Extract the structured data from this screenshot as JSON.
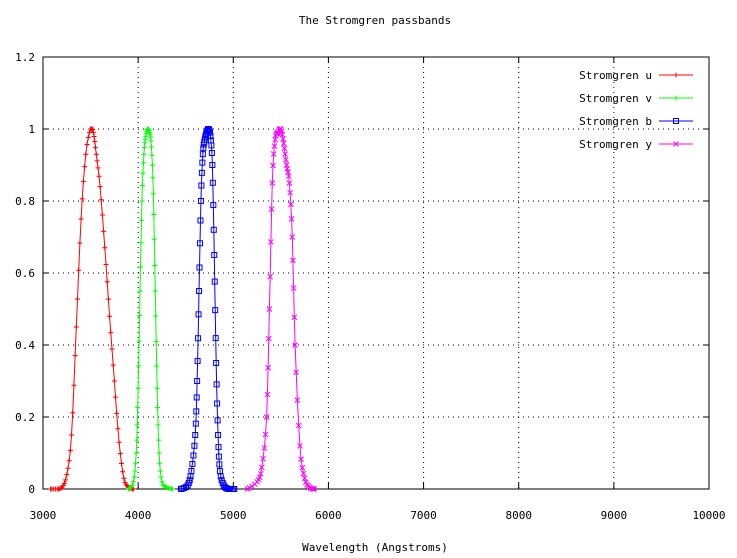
{
  "chart_data": {
    "type": "line",
    "title": "The Stromgren passbands",
    "xlabel": "Wavelength (Angstroms)",
    "ylabel": "",
    "xlim": [
      3000,
      10000
    ],
    "ylim": [
      0,
      1.2
    ],
    "xticks": [
      "3000",
      "4000",
      "5000",
      "6000",
      "7000",
      "8000",
      "9000",
      "10000"
    ],
    "yticks": [
      "0",
      "0.2",
      "0.4",
      "0.6",
      "0.8",
      "1",
      "1.2"
    ],
    "grid": true,
    "legend_position": "top-right",
    "series": [
      {
        "name": "Stromgren u",
        "color": "#ff0000",
        "marker": "plus",
        "peak_x": 3500,
        "x": [
          3080,
          3150,
          3200,
          3250,
          3300,
          3350,
          3400,
          3450,
          3500,
          3530,
          3560,
          3600,
          3650,
          3700,
          3750,
          3800,
          3850,
          3900,
          3950
        ],
        "y": [
          0.0,
          0.0,
          0.005,
          0.04,
          0.15,
          0.45,
          0.75,
          0.93,
          1.0,
          0.99,
          0.93,
          0.84,
          0.67,
          0.48,
          0.3,
          0.13,
          0.03,
          0.005,
          0.0
        ]
      },
      {
        "name": "Stromgren v",
        "color": "#00ff00",
        "marker": "plus",
        "peak_x": 4110,
        "x": [
          3900,
          3950,
          3980,
          4000,
          4020,
          4040,
          4060,
          4080,
          4100,
          4120,
          4140,
          4160,
          4180,
          4200,
          4220,
          4250,
          4300,
          4360
        ],
        "y": [
          0.0,
          0.02,
          0.1,
          0.28,
          0.55,
          0.8,
          0.93,
          0.98,
          1.0,
          0.99,
          0.95,
          0.82,
          0.55,
          0.28,
          0.1,
          0.02,
          0.005,
          0.0
        ]
      },
      {
        "name": "Stromgren b",
        "color": "#0000ff",
        "marker": "square",
        "peak_x": 4740,
        "x": [
          4450,
          4520,
          4560,
          4600,
          4620,
          4640,
          4660,
          4680,
          4700,
          4720,
          4740,
          4760,
          4780,
          4800,
          4820,
          4840,
          4860,
          4900,
          4950,
          5010
        ],
        "y": [
          0.0,
          0.01,
          0.05,
          0.15,
          0.3,
          0.55,
          0.8,
          0.93,
          0.97,
          0.99,
          1.0,
          0.98,
          0.9,
          0.65,
          0.35,
          0.15,
          0.05,
          0.01,
          0.0,
          0.0
        ]
      },
      {
        "name": "Stromgren y",
        "color": "#ff00ff",
        "marker": "cross",
        "peak_x": 5480,
        "x": [
          5150,
          5250,
          5300,
          5350,
          5380,
          5410,
          5440,
          5470,
          5500,
          5530,
          5560,
          5590,
          5620,
          5650,
          5700,
          5750,
          5800,
          5850
        ],
        "y": [
          0.0,
          0.02,
          0.06,
          0.2,
          0.5,
          0.85,
          0.97,
          0.99,
          1.0,
          0.96,
          0.9,
          0.85,
          0.7,
          0.4,
          0.12,
          0.03,
          0.005,
          0.0
        ]
      }
    ]
  }
}
